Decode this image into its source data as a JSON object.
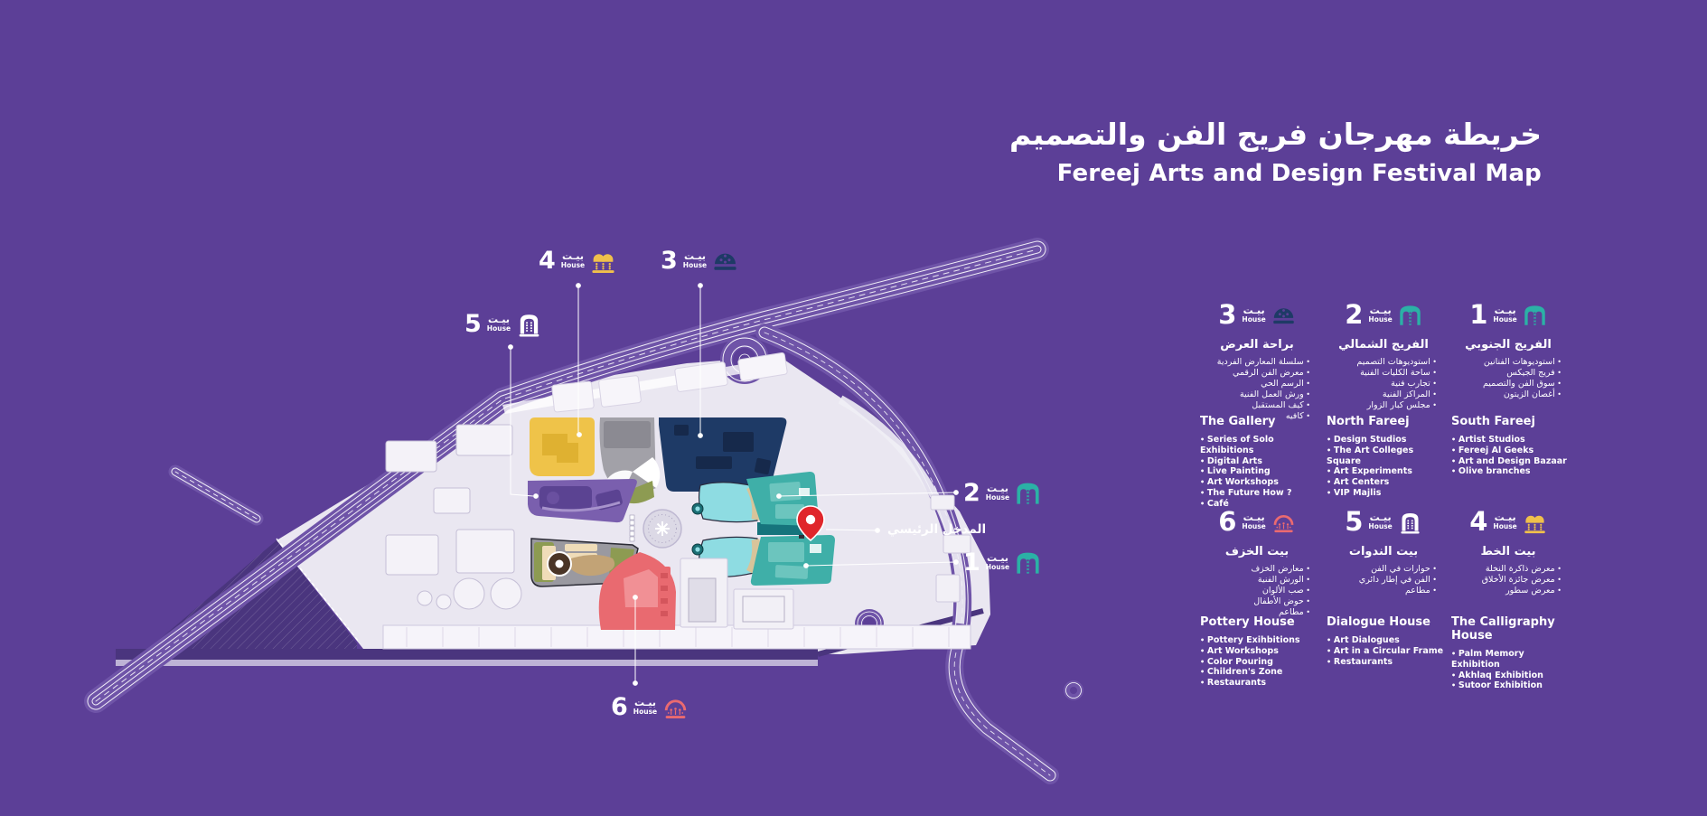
{
  "title": {
    "ar": "خريطة مهرجان فريج الفن والتصميم",
    "en": "Fereej Arts and Design Festival Map"
  },
  "labels": {
    "house_ar": "بيـت",
    "house_en": "House",
    "main_entrance": "المدخل الرئيسي"
  },
  "houses": [
    {
      "num": "1",
      "icon": "majlis-arch-icon",
      "color": "#2BB1A6",
      "name_ar": "الفريج الجنوبي",
      "name_en": "South Fareej",
      "items_ar": [
        "استوديوهات الفنانين",
        "فريج الجيكس",
        "سوق الفن والتصميم",
        "أغصان الزيتون"
      ],
      "items_en": [
        "Artist Studios",
        "Fereej Al Geeks",
        "Art and Design Bazaar",
        "Olive branches"
      ]
    },
    {
      "num": "2",
      "icon": "majlis-arch-icon",
      "color": "#2BB1A6",
      "name_ar": "الفريج الشمالي",
      "name_en": "North Fareej",
      "items_ar": [
        "استوديوهات التصميم",
        "ساحة الكليات الفنية",
        "تجارب فنية",
        "المراكز الفنية",
        "مجلس كبار الزوار"
      ],
      "items_en": [
        "Design Studios",
        "The Art Colleges Square",
        "Art Experiments",
        "Art Centers",
        "VIP Majlis"
      ]
    },
    {
      "num": "3",
      "icon": "dome-icon",
      "color": "#1E3A66",
      "name_ar": "براحة العرض",
      "name_en": "The Gallery",
      "items_ar": [
        "سلسلة المعارض الفردية",
        "معرض الفن الرقمي",
        "الرسم الحي",
        "ورش العمل الفنية",
        "كيف المستقبل",
        "كافيه"
      ],
      "items_en": [
        "Series of Solo Exhibitions",
        "Digital Arts",
        "Live Painting",
        "Art Workshops",
        "The Future How ?",
        "Café"
      ]
    },
    {
      "num": "4",
      "icon": "double-arch-icon",
      "color": "#F0C04B",
      "name_ar": "بيت الخط",
      "name_en": "The Calligraphy House",
      "items_ar": [
        "معرض ذاكرة النخلة",
        "معرض جائزة الأخلاق",
        "معرض سطور"
      ],
      "items_en": [
        "Palm Memory Exhibition",
        "Akhlaq Exhibition",
        "Sutoor Exhibition"
      ]
    },
    {
      "num": "5",
      "icon": "gate-icon",
      "color": "#FFFFFF",
      "name_ar": "بيت الندوات",
      "name_en": "Dialogue House",
      "items_ar": [
        "حوارات في الفن",
        "الفن في إطار دائري",
        "مطاعم"
      ],
      "items_en": [
        "Art Dialogues",
        "Art in a Circular Frame",
        "Restaurants"
      ]
    },
    {
      "num": "6",
      "icon": "dome-figures-icon",
      "color": "#EB6A70",
      "name_ar": "بيت الخزف",
      "name_en": "Pottery House",
      "items_ar": [
        "معارض الخزف",
        "الورش الفنية",
        "صب الألوان",
        "حوض الأطفال",
        "مطاعم"
      ],
      "items_en": [
        "Pottery Exihbitions",
        "Art Workshops",
        "Color Pouring",
        "Children's Zone",
        "Restaurants"
      ]
    }
  ],
  "map": {
    "colors": {
      "background": "#5C3F97",
      "road": "#6F54A8",
      "roadDark": "#4A357E",
      "siteBase": "#EAE7F1",
      "yellow": "#EFC349",
      "yellowDark": "#DDAF2F",
      "gray": "#A2A1A8",
      "grayDark": "#8B8A92",
      "navy": "#1E3A66",
      "navyDark": "#16294B",
      "purpleZone": "#7A5FAE",
      "purpleZoneDark": "#5B4392",
      "olive": "#8D9B52",
      "tan": "#C2A376",
      "cream": "#EFDCB8",
      "brown": "#4A3526",
      "red": "#E96A70",
      "redLight": "#F19095",
      "teal": "#3FAFA8",
      "tealLight": "#6CC5BE",
      "tealDark": "#16747C",
      "cyan": "#8EDCE2",
      "sand": "#D8C49A",
      "pin": "#E0262B"
    }
  }
}
